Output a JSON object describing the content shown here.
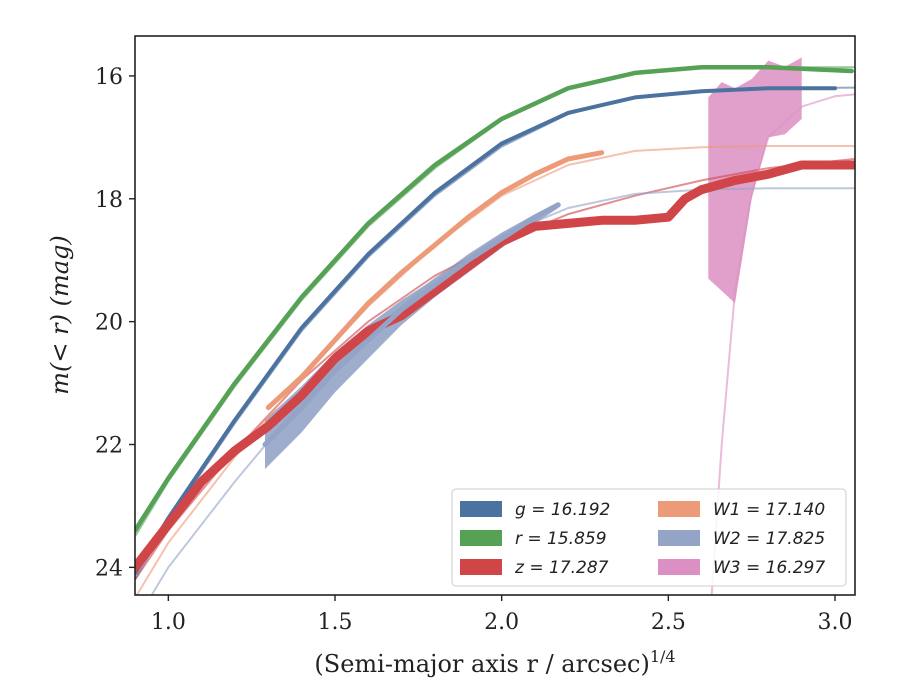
{
  "chart_data": {
    "type": "line",
    "title": "",
    "xlabel": "(Semi-major axis r / arcsec)",
    "xlabel_superscript": "1/4",
    "ylabel": "m(< r) (mag)",
    "xlim": [
      0.9,
      3.06
    ],
    "ylim": [
      24.45,
      15.35
    ],
    "y_inverted": true,
    "grid": false,
    "legend_position": "lower-right",
    "legend_columns": 2,
    "x_ticks": [
      {
        "value": 1.0,
        "label": "1.0"
      },
      {
        "value": 1.5,
        "label": "1.5"
      },
      {
        "value": 2.0,
        "label": "2.0"
      },
      {
        "value": 2.5,
        "label": "2.5"
      },
      {
        "value": 3.0,
        "label": "3.0"
      }
    ],
    "y_ticks": [
      {
        "value": 16,
        "label": "16"
      },
      {
        "value": 18,
        "label": "18"
      },
      {
        "value": 20,
        "label": "20"
      },
      {
        "value": 22,
        "label": "22"
      },
      {
        "value": 24,
        "label": "24"
      }
    ],
    "series": [
      {
        "name": "g = 16.192",
        "legend_label": "g = 16.192",
        "color": "#4c72a0",
        "fit_asymptote": 16.192,
        "data": [
          [
            0.9,
            24.1
          ],
          [
            1.0,
            23.2
          ],
          [
            1.2,
            21.6
          ],
          [
            1.4,
            20.1
          ],
          [
            1.6,
            18.9
          ],
          [
            1.8,
            17.9
          ],
          [
            2.0,
            17.1
          ],
          [
            2.2,
            16.6
          ],
          [
            2.4,
            16.35
          ],
          [
            2.6,
            16.25
          ],
          [
            2.8,
            16.2
          ],
          [
            3.0,
            16.2
          ]
        ],
        "fit": [
          [
            0.9,
            24.2
          ],
          [
            1.0,
            23.25
          ],
          [
            1.2,
            21.65
          ],
          [
            1.4,
            20.15
          ],
          [
            1.6,
            18.95
          ],
          [
            1.8,
            17.95
          ],
          [
            2.0,
            17.15
          ],
          [
            2.2,
            16.62
          ],
          [
            2.4,
            16.35
          ],
          [
            2.6,
            16.24
          ],
          [
            2.8,
            16.2
          ],
          [
            3.06,
            16.19
          ]
        ]
      },
      {
        "name": "r = 15.859",
        "legend_label": "r = 15.859",
        "color": "#55a155",
        "fit_asymptote": 15.859,
        "data": [
          [
            0.9,
            23.4
          ],
          [
            1.0,
            22.55
          ],
          [
            1.2,
            21.0
          ],
          [
            1.4,
            19.6
          ],
          [
            1.6,
            18.4
          ],
          [
            1.8,
            17.45
          ],
          [
            2.0,
            16.7
          ],
          [
            2.2,
            16.2
          ],
          [
            2.4,
            15.95
          ],
          [
            2.6,
            15.86
          ],
          [
            2.8,
            15.86
          ],
          [
            3.05,
            15.92
          ]
        ],
        "fit": [
          [
            0.9,
            23.5
          ],
          [
            1.0,
            22.6
          ],
          [
            1.2,
            21.05
          ],
          [
            1.4,
            19.65
          ],
          [
            1.6,
            18.45
          ],
          [
            1.8,
            17.5
          ],
          [
            2.0,
            16.72
          ],
          [
            2.2,
            16.2
          ],
          [
            2.4,
            15.95
          ],
          [
            2.6,
            15.87
          ],
          [
            2.8,
            15.86
          ],
          [
            3.06,
            15.86
          ]
        ]
      },
      {
        "name": "z = 17.287",
        "legend_label": "z = 17.287",
        "color": "#d04547",
        "fit_asymptote": 17.287,
        "data": [
          [
            0.9,
            24.0
          ],
          [
            1.0,
            23.3
          ],
          [
            1.1,
            22.6
          ],
          [
            1.2,
            22.1
          ],
          [
            1.3,
            21.7
          ],
          [
            1.4,
            21.2
          ],
          [
            1.5,
            20.6
          ],
          [
            1.6,
            20.15
          ],
          [
            1.7,
            19.9
          ],
          [
            1.8,
            19.5
          ],
          [
            1.9,
            19.1
          ],
          [
            2.0,
            18.7
          ],
          [
            2.1,
            18.45
          ],
          [
            2.2,
            18.4
          ],
          [
            2.3,
            18.35
          ],
          [
            2.4,
            18.35
          ],
          [
            2.5,
            18.3
          ],
          [
            2.55,
            18.0
          ],
          [
            2.6,
            17.85
          ],
          [
            2.7,
            17.7
          ],
          [
            2.8,
            17.6
          ],
          [
            2.9,
            17.45
          ],
          [
            3.06,
            17.45
          ]
        ],
        "fit": [
          [
            0.9,
            24.2
          ],
          [
            1.0,
            23.4
          ],
          [
            1.2,
            22.1
          ],
          [
            1.4,
            20.95
          ],
          [
            1.6,
            20.0
          ],
          [
            1.8,
            19.25
          ],
          [
            2.0,
            18.7
          ],
          [
            2.2,
            18.25
          ],
          [
            2.4,
            17.95
          ],
          [
            2.6,
            17.7
          ],
          [
            2.8,
            17.5
          ],
          [
            3.06,
            17.35
          ]
        ]
      },
      {
        "name": "W1 = 17.140",
        "legend_label": "W1 = 17.140",
        "color": "#ec9a78",
        "fit_asymptote": 17.14,
        "data": [
          [
            1.3,
            21.4
          ],
          [
            1.4,
            20.9
          ],
          [
            1.5,
            20.3
          ],
          [
            1.6,
            19.7
          ],
          [
            1.7,
            19.2
          ],
          [
            1.8,
            18.75
          ],
          [
            1.9,
            18.3
          ],
          [
            2.0,
            17.9
          ],
          [
            2.1,
            17.6
          ],
          [
            2.2,
            17.35
          ],
          [
            2.3,
            17.25
          ]
        ],
        "fit": [
          [
            0.9,
            24.5
          ],
          [
            1.0,
            23.6
          ],
          [
            1.2,
            22.2
          ],
          [
            1.4,
            20.9
          ],
          [
            1.6,
            19.75
          ],
          [
            1.8,
            18.75
          ],
          [
            2.0,
            17.95
          ],
          [
            2.2,
            17.45
          ],
          [
            2.4,
            17.22
          ],
          [
            2.6,
            17.16
          ],
          [
            2.8,
            17.14
          ],
          [
            3.06,
            17.14
          ]
        ]
      },
      {
        "name": "W2 = 17.825",
        "legend_label": "W2 = 17.825",
        "color": "#93a4c6",
        "fit_asymptote": 17.825,
        "data": [
          [
            1.29,
            22.0
          ],
          [
            1.4,
            21.4
          ],
          [
            1.5,
            20.8
          ],
          [
            1.6,
            20.3
          ],
          [
            1.7,
            19.8
          ],
          [
            1.8,
            19.4
          ],
          [
            1.9,
            19.0
          ],
          [
            2.0,
            18.65
          ],
          [
            2.1,
            18.3
          ],
          [
            2.17,
            18.1
          ]
        ],
        "fit": [
          [
            0.95,
            24.45
          ],
          [
            1.0,
            24.0
          ],
          [
            1.2,
            22.6
          ],
          [
            1.4,
            21.3
          ],
          [
            1.6,
            20.2
          ],
          [
            1.8,
            19.3
          ],
          [
            2.0,
            18.6
          ],
          [
            2.2,
            18.15
          ],
          [
            2.4,
            17.92
          ],
          [
            2.6,
            17.85
          ],
          [
            2.8,
            17.83
          ],
          [
            3.06,
            17.83
          ]
        ]
      },
      {
        "name": "W3 = 16.297",
        "legend_label": "W3 = 16.297",
        "color": "#dc8fc2",
        "fit_asymptote": 16.297,
        "data": [
          [
            2.62,
            18.0
          ],
          [
            2.65,
            17.7
          ],
          [
            2.7,
            17.2
          ],
          [
            2.75,
            17.05
          ],
          [
            2.8,
            16.5
          ],
          [
            2.85,
            16.3
          ],
          [
            2.9,
            16.2
          ]
        ],
        "fit": [
          [
            2.63,
            24.45
          ],
          [
            2.66,
            22.0
          ],
          [
            2.7,
            19.5
          ],
          [
            2.75,
            17.9
          ],
          [
            2.8,
            17.0
          ],
          [
            2.9,
            16.5
          ],
          [
            3.0,
            16.33
          ],
          [
            3.06,
            16.3
          ]
        ]
      }
    ]
  }
}
